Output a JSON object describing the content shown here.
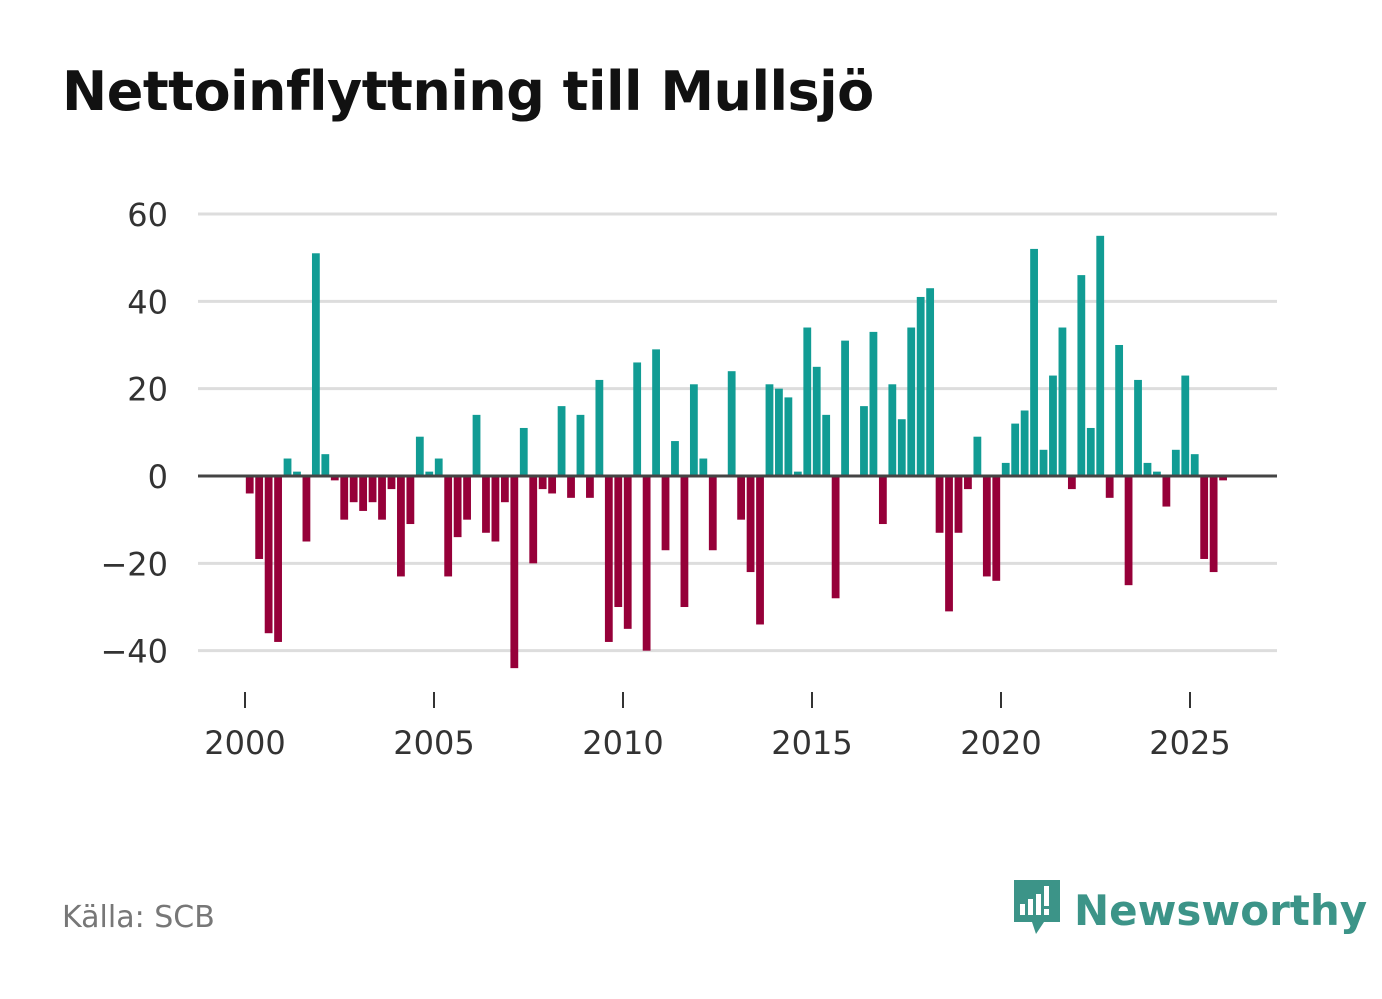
{
  "title": "Nettoinflyttning till Mullsjö",
  "source": "Källa: SCB",
  "brand": {
    "name": "Newsworthy",
    "icon": "newsworthy-logo-icon"
  },
  "colors": {
    "positive": "#119c94",
    "negative": "#960039",
    "grid": "#dddddd",
    "zero": "#444444",
    "brand": "#3c9488"
  },
  "chart_data": {
    "type": "bar",
    "title": "Nettoinflyttning till Mullsjö",
    "xlabel": "",
    "ylabel": "",
    "ylim": [
      -45,
      62
    ],
    "yticks": [
      60,
      40,
      20,
      0,
      -20,
      -40
    ],
    "ytick_labels": [
      "60",
      "40",
      "20",
      "0",
      "−20",
      "−40"
    ],
    "xticks": [
      2000,
      2005,
      2010,
      2015,
      2020,
      2025
    ],
    "xtick_labels": [
      "2000",
      "2005",
      "2010",
      "2015",
      "2020",
      "2025"
    ],
    "grid": true,
    "period": "quarterly",
    "x_start": 2000,
    "values": [
      -4,
      -19,
      -36,
      -38,
      4,
      1,
      -15,
      51,
      5,
      -1,
      -10,
      -6,
      -8,
      -6,
      -10,
      -3,
      -23,
      -11,
      9,
      1,
      4,
      -23,
      -14,
      -10,
      14,
      -13,
      -15,
      -6,
      -44,
      11,
      -20,
      -3,
      -4,
      16,
      -5,
      14,
      -5,
      22,
      -38,
      -30,
      -35,
      26,
      -40,
      29,
      -17,
      8,
      -30,
      21,
      4,
      -17,
      0,
      24,
      -10,
      -22,
      -34,
      21,
      20,
      18,
      1,
      34,
      25,
      14,
      -28,
      31,
      0,
      16,
      33,
      -11,
      21,
      13,
      34,
      41,
      43,
      -13,
      -31,
      -13,
      -3,
      9,
      -23,
      -24,
      3,
      12,
      15,
      52,
      6,
      23,
      34,
      -3,
      46,
      11,
      55,
      -5,
      30,
      -25,
      22,
      3,
      1,
      -7,
      6,
      23,
      5,
      -19,
      -22,
      -1
    ]
  }
}
